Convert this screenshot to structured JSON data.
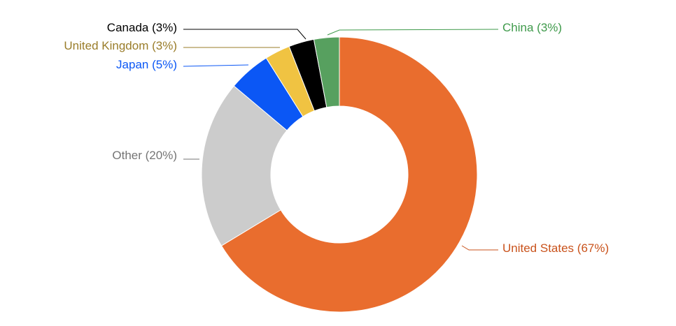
{
  "chart_data": {
    "type": "pie",
    "categories": [
      "United States",
      "Other",
      "Japan",
      "United Kingdom",
      "Canada",
      "China"
    ],
    "values": [
      67,
      20,
      5,
      3,
      3,
      3
    ],
    "value_labels": [
      "(67%)",
      "(20%)",
      "(5%)",
      "(3%)",
      "(3%)",
      "(3%)"
    ],
    "colors": [
      "#e96d2e",
      "#cccccc",
      "#0b57f5",
      "#f0c342",
      "#000000",
      "#57a05f"
    ],
    "label_colors": [
      "#c9521b",
      "#757575",
      "#0b57f5",
      "#9a7d2a",
      "#000000",
      "#3f9a4b"
    ]
  }
}
